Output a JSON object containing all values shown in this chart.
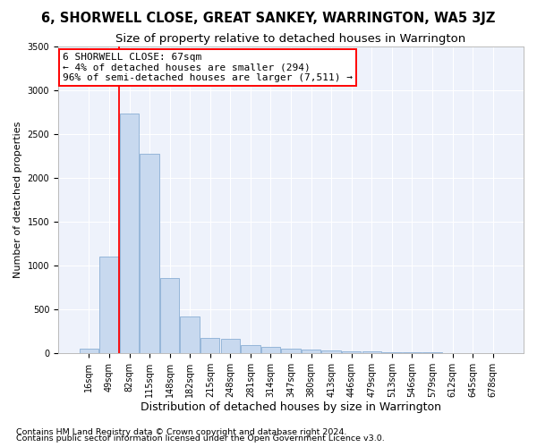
{
  "title": "6, SHORWELL CLOSE, GREAT SANKEY, WARRINGTON, WA5 3JZ",
  "subtitle": "Size of property relative to detached houses in Warrington",
  "xlabel": "Distribution of detached houses by size in Warrington",
  "ylabel": "Number of detached properties",
  "bar_color": "#c8d9ef",
  "bar_edge_color": "#8aafd4",
  "categories": [
    "16sqm",
    "49sqm",
    "82sqm",
    "115sqm",
    "148sqm",
    "182sqm",
    "215sqm",
    "248sqm",
    "281sqm",
    "314sqm",
    "347sqm",
    "380sqm",
    "413sqm",
    "446sqm",
    "479sqm",
    "513sqm",
    "546sqm",
    "579sqm",
    "612sqm",
    "645sqm",
    "678sqm"
  ],
  "values": [
    50,
    1100,
    2730,
    2270,
    860,
    415,
    175,
    165,
    90,
    65,
    50,
    35,
    30,
    20,
    15,
    10,
    8,
    5,
    3,
    2,
    1
  ],
  "ylim": [
    0,
    3500
  ],
  "yticks": [
    0,
    500,
    1000,
    1500,
    2000,
    2500,
    3000,
    3500
  ],
  "redline_x": 1.5,
  "annotation_line1": "6 SHORWELL CLOSE: 67sqm",
  "annotation_line2": "← 4% of detached houses are smaller (294)",
  "annotation_line3": "96% of semi-detached houses are larger (7,511) →",
  "footnote1": "Contains HM Land Registry data © Crown copyright and database right 2024.",
  "footnote2": "Contains public sector information licensed under the Open Government Licence v3.0.",
  "bg_color": "#eef2fb",
  "fig_bg_color": "#ffffff",
  "grid_color": "#ffffff",
  "title_fontsize": 10.5,
  "subtitle_fontsize": 9.5,
  "ylabel_fontsize": 8,
  "xlabel_fontsize": 9,
  "tick_fontsize": 7,
  "annotation_fontsize": 8,
  "footnote_fontsize": 6.8
}
